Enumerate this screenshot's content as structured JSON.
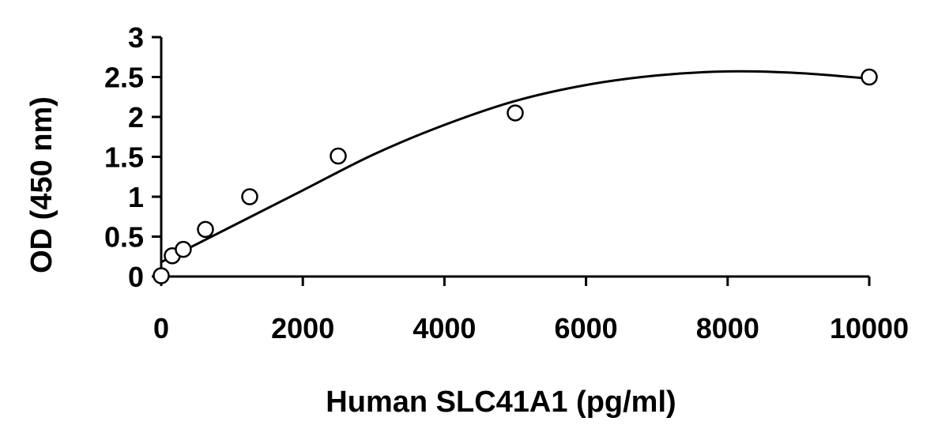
{
  "chart_data": {
    "type": "scatter",
    "title": "",
    "xlabel": "Human SLC41A1 (pg/ml)",
    "ylabel": "OD (450 nm)",
    "xlim": [
      0,
      10000
    ],
    "ylim": [
      0,
      3
    ],
    "xticks": [
      0,
      2000,
      4000,
      6000,
      8000,
      10000
    ],
    "yticks": [
      0,
      0.5,
      1,
      1.5,
      2,
      2.5,
      3
    ],
    "xtick_labels": [
      "0",
      "2000",
      "4000",
      "6000",
      "8000",
      "10000"
    ],
    "ytick_labels": [
      "0",
      "0.5",
      "1",
      "1.5",
      "2",
      "2.5",
      "3"
    ],
    "grid": false,
    "legend": "none",
    "series": [
      {
        "marker": "open-circle",
        "points": [
          {
            "x": 0,
            "y": 0.01
          },
          {
            "x": 156,
            "y": 0.26
          },
          {
            "x": 312,
            "y": 0.34
          },
          {
            "x": 625,
            "y": 0.59
          },
          {
            "x": 1250,
            "y": 1.0
          },
          {
            "x": 2500,
            "y": 1.51
          },
          {
            "x": 5000,
            "y": 2.05
          },
          {
            "x": 10000,
            "y": 2.5
          }
        ]
      }
    ],
    "fit_curve": {
      "kind": "polynomial-2",
      "x": [
        0,
        1000,
        2000,
        3000,
        4000,
        5000,
        6000,
        7000,
        8000,
        9000,
        10000
      ],
      "y": [
        0.18,
        0.63,
        1.08,
        1.53,
        1.9,
        2.2,
        2.4,
        2.52,
        2.57,
        2.55,
        2.48
      ]
    }
  }
}
